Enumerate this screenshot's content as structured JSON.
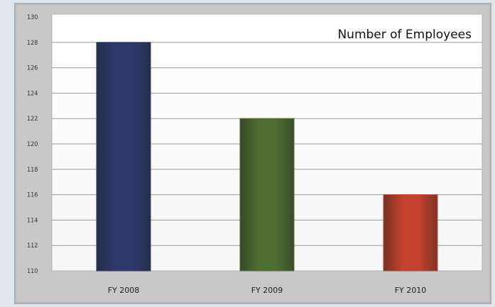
{
  "chart_data": {
    "type": "bar",
    "title": "Number of Employees",
    "xlabel": "",
    "ylabel": "",
    "categories": [
      "FY 2008",
      "FY 2009",
      "FY 2010"
    ],
    "values": [
      128,
      122,
      116
    ],
    "ylim": [
      110,
      130
    ],
    "yticks": [
      110,
      112,
      114,
      116,
      118,
      120,
      122,
      124,
      126,
      128,
      130
    ],
    "colors": [
      "#2e3a6e",
      "#4f6e32",
      "#c2422e"
    ],
    "grid": true,
    "legend": "none"
  }
}
